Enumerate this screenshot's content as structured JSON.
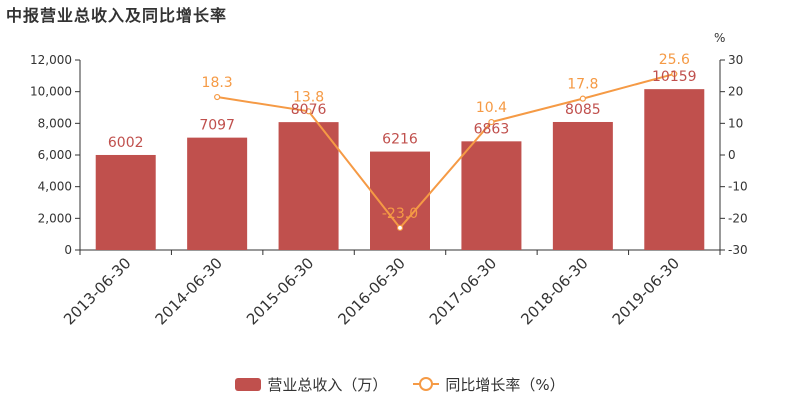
{
  "title": "中报营业总收入及同比增长率",
  "colors": {
    "bar": "#c0504d",
    "line": "#f59a45",
    "axis": "#333333"
  },
  "legend": {
    "bar_label": "营业总收入（万）",
    "line_label": "同比增长率（%）"
  },
  "chart_data": {
    "type": "bar",
    "categories": [
      "2013-06-30",
      "2014-06-30",
      "2015-06-30",
      "2016-06-30",
      "2017-06-30",
      "2018-06-30",
      "2019-06-30"
    ],
    "series": [
      {
        "name": "营业总收入（万）",
        "type": "bar",
        "axis": "left",
        "values": [
          6002,
          7097,
          8076,
          6216,
          6863,
          8085,
          10159
        ]
      },
      {
        "name": "同比增长率（%）",
        "type": "line",
        "axis": "right",
        "values": [
          null,
          18.3,
          13.8,
          -23.0,
          10.4,
          17.8,
          25.6
        ]
      }
    ],
    "bar_labels": [
      "6002",
      "7097",
      "8076",
      "6216",
      "6863",
      "8085",
      "10159"
    ],
    "line_labels": [
      "",
      "18.3",
      "13.8",
      "-23.0",
      "10.4",
      "17.8",
      "25.6"
    ],
    "y_left": {
      "ylim": [
        0,
        12000
      ],
      "ticks": [
        "0",
        "2,000",
        "4,000",
        "6,000",
        "8,000",
        "10,000",
        "12,000"
      ]
    },
    "y_right": {
      "label": "%",
      "ylim": [
        -30,
        30
      ],
      "ticks": [
        "-30",
        "-20",
        "-10",
        "0",
        "10",
        "20",
        "30"
      ]
    },
    "grid": false,
    "legend_position": "bottom-center"
  }
}
